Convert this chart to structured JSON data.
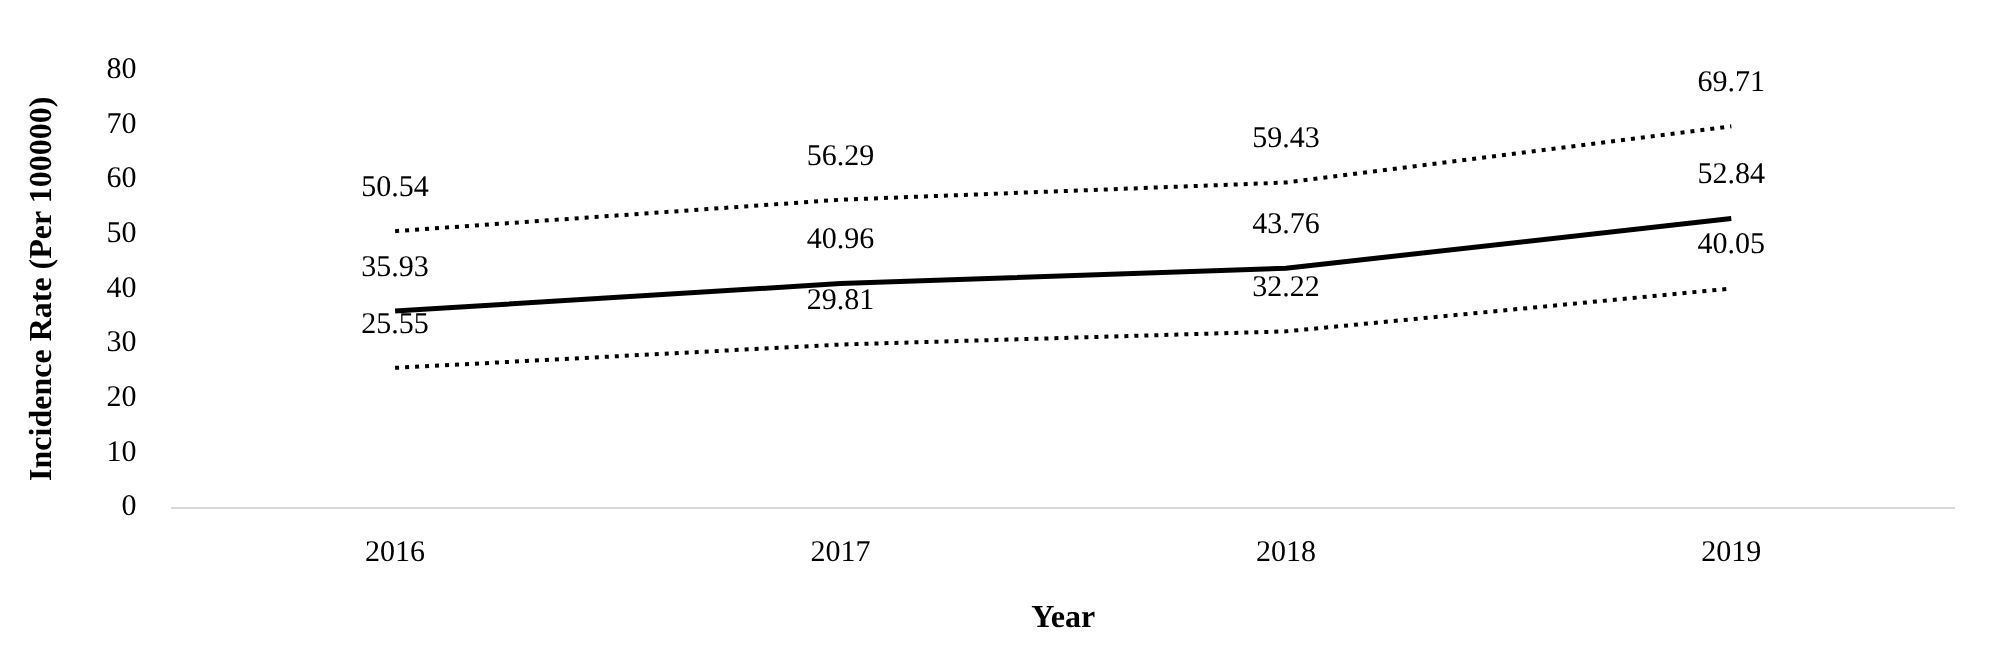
{
  "chart_data": {
    "type": "line",
    "xlabel": "Year",
    "ylabel": "Incidence Rate (Per 100000)",
    "categories": [
      "2016",
      "2017",
      "2018",
      "2019"
    ],
    "series": [
      {
        "color": "#000000",
        "line_style": "dotted",
        "values": [
          50.54,
          56.29,
          59.43,
          69.71
        ]
      },
      {
        "color": "#000000",
        "line_style": "solid",
        "values": [
          35.93,
          40.96,
          43.76,
          52.84
        ]
      },
      {
        "color": "#000000",
        "line_style": "dotted",
        "values": [
          25.55,
          29.81,
          32.22,
          40.05
        ]
      }
    ],
    "ylim": [
      0,
      80
    ],
    "yticks": [
      0,
      10,
      20,
      30,
      40,
      50,
      60,
      70,
      80
    ],
    "grid": false,
    "legend": false,
    "marker": "none",
    "data_labels": true
  }
}
